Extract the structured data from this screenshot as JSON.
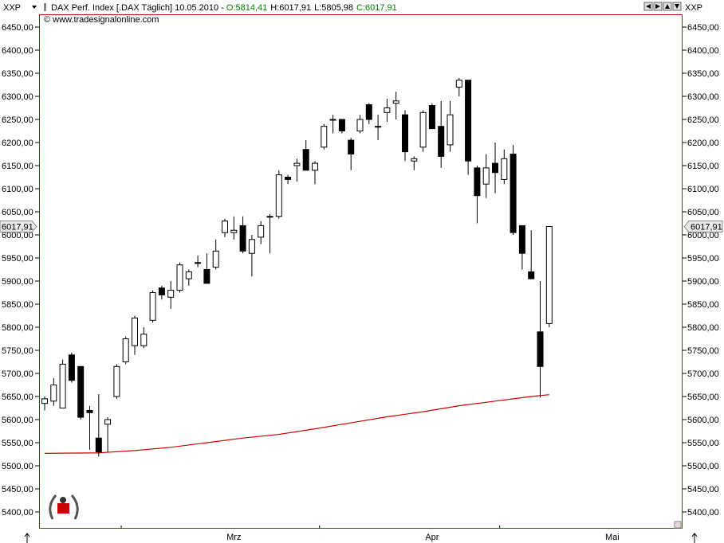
{
  "header": {
    "symbol_left": "XXP",
    "symbol_right": "XXP",
    "instrument": "DAX Perf. Index [.DAX  Täglich] 10.05.2010 - ",
    "open": "O:5814,41",
    "high": "H:6017,91",
    "low": "L:5805,98",
    "close": "C:6017,91",
    "copyright": "© www.tradesignalonline.com"
  },
  "last_price_label": "6017,91",
  "colors": {
    "up_fill": "#ffffff",
    "down_fill": "#000000",
    "moving_average": "#cc0000",
    "frame": "#cc0000",
    "header_green": "#008000"
  },
  "chart_data": {
    "type": "candlestick",
    "ylim": [
      5370,
      6480
    ],
    "y_ticks": [
      5400,
      5450,
      5500,
      5550,
      5600,
      5650,
      5700,
      5750,
      5800,
      5850,
      5900,
      5950,
      6000,
      6050,
      6100,
      6150,
      6200,
      6250,
      6300,
      6350,
      6400,
      6450
    ],
    "y_tick_labels": [
      "5400,00",
      "5450,00",
      "5500,00",
      "5550,00",
      "5600,00",
      "5650,00",
      "5700,00",
      "5750,00",
      "5800,00",
      "5850,00",
      "5900,00",
      "5950,00",
      "6000,00",
      "6050,00",
      "6100,00",
      "6150,00",
      "6200,00",
      "6250,00",
      "6300,00",
      "6350,00",
      "6400,00",
      "6450,00"
    ],
    "x_labels": [
      {
        "label": "Mrz",
        "index": 21
      },
      {
        "label": "Apr",
        "index": 43
      },
      {
        "label": "Mai",
        "index": 63
      }
    ],
    "x_month_ticks": [
      8,
      30,
      50
    ],
    "candles": [
      {
        "o": 5635,
        "h": 5650,
        "l": 5620,
        "c": 5645
      },
      {
        "o": 5640,
        "h": 5690,
        "l": 5630,
        "c": 5675
      },
      {
        "o": 5625,
        "h": 5730,
        "l": 5625,
        "c": 5720
      },
      {
        "o": 5740,
        "h": 5745,
        "l": 5680,
        "c": 5685
      },
      {
        "o": 5715,
        "h": 5715,
        "l": 5600,
        "c": 5605
      },
      {
        "o": 5620,
        "h": 5630,
        "l": 5535,
        "c": 5615
      },
      {
        "o": 5560,
        "h": 5655,
        "l": 5520,
        "c": 5530
      },
      {
        "o": 5590,
        "h": 5605,
        "l": 5530,
        "c": 5600
      },
      {
        "o": 5650,
        "h": 5720,
        "l": 5645,
        "c": 5715
      },
      {
        "o": 5725,
        "h": 5780,
        "l": 5720,
        "c": 5775
      },
      {
        "o": 5760,
        "h": 5825,
        "l": 5740,
        "c": 5820
      },
      {
        "o": 5760,
        "h": 5800,
        "l": 5755,
        "c": 5785
      },
      {
        "o": 5815,
        "h": 5880,
        "l": 5810,
        "c": 5875
      },
      {
        "o": 5885,
        "h": 5890,
        "l": 5860,
        "c": 5870
      },
      {
        "o": 5865,
        "h": 5900,
        "l": 5840,
        "c": 5880
      },
      {
        "o": 5880,
        "h": 5940,
        "l": 5875,
        "c": 5935
      },
      {
        "o": 5905,
        "h": 5925,
        "l": 5890,
        "c": 5920
      },
      {
        "o": 5940,
        "h": 5955,
        "l": 5930,
        "c": 5940
      },
      {
        "o": 5925,
        "h": 5960,
        "l": 5895,
        "c": 5895
      },
      {
        "o": 5930,
        "h": 5990,
        "l": 5925,
        "c": 5965
      },
      {
        "o": 6005,
        "h": 6035,
        "l": 5995,
        "c": 6030
      },
      {
        "o": 6005,
        "h": 6040,
        "l": 5990,
        "c": 6010
      },
      {
        "o": 6020,
        "h": 6040,
        "l": 5960,
        "c": 5965
      },
      {
        "o": 5960,
        "h": 6000,
        "l": 5910,
        "c": 5990
      },
      {
        "o": 5995,
        "h": 6030,
        "l": 5980,
        "c": 6020
      },
      {
        "o": 6040,
        "h": 6045,
        "l": 5960,
        "c": 6040
      },
      {
        "o": 6040,
        "h": 6140,
        "l": 6035,
        "c": 6130
      },
      {
        "o": 6125,
        "h": 6130,
        "l": 6110,
        "c": 6120
      },
      {
        "o": 6150,
        "h": 6165,
        "l": 6115,
        "c": 6155
      },
      {
        "o": 6185,
        "h": 6205,
        "l": 6140,
        "c": 6140
      },
      {
        "o": 6140,
        "h": 6160,
        "l": 6110,
        "c": 6155
      },
      {
        "o": 6190,
        "h": 6240,
        "l": 6185,
        "c": 6235
      },
      {
        "o": 6250,
        "h": 6260,
        "l": 6220,
        "c": 6250
      },
      {
        "o": 6250,
        "h": 6250,
        "l": 6220,
        "c": 6225
      },
      {
        "o": 6205,
        "h": 6210,
        "l": 6140,
        "c": 6175
      },
      {
        "o": 6225,
        "h": 6260,
        "l": 6220,
        "c": 6250
      },
      {
        "o": 6282,
        "h": 6285,
        "l": 6240,
        "c": 6250
      },
      {
        "o": 6235,
        "h": 6260,
        "l": 6205,
        "c": 6235
      },
      {
        "o": 6265,
        "h": 6295,
        "l": 6245,
        "c": 6275
      },
      {
        "o": 6285,
        "h": 6310,
        "l": 6250,
        "c": 6290
      },
      {
        "o": 6260,
        "h": 6270,
        "l": 6160,
        "c": 6180
      },
      {
        "o": 6160,
        "h": 6170,
        "l": 6140,
        "c": 6165
      },
      {
        "o": 6190,
        "h": 6270,
        "l": 6180,
        "c": 6265
      },
      {
        "o": 6280,
        "h": 6285,
        "l": 6230,
        "c": 6230
      },
      {
        "o": 6235,
        "h": 6290,
        "l": 6145,
        "c": 6170
      },
      {
        "o": 6195,
        "h": 6290,
        "l": 6180,
        "c": 6260
      },
      {
        "o": 6320,
        "h": 6340,
        "l": 6300,
        "c": 6335
      },
      {
        "o": 6335,
        "h": 6335,
        "l": 6130,
        "c": 6160
      },
      {
        "o": 6145,
        "h": 6150,
        "l": 6025,
        "c": 6085
      },
      {
        "o": 6110,
        "h": 6175,
        "l": 6080,
        "c": 6145
      },
      {
        "o": 6155,
        "h": 6200,
        "l": 6090,
        "c": 6135
      },
      {
        "o": 6120,
        "h": 6185,
        "l": 6110,
        "c": 6165
      },
      {
        "o": 6175,
        "h": 6195,
        "l": 6000,
        "c": 6005
      },
      {
        "o": 6020,
        "h": 6020,
        "l": 5925,
        "c": 5960
      },
      {
        "o": 5920,
        "h": 6010,
        "l": 5905,
        "c": 5905
      },
      {
        "o": 5790,
        "h": 5900,
        "l": 5648,
        "c": 5715
      },
      {
        "o": 5808,
        "h": 6018,
        "l": 5800,
        "c": 6018
      }
    ],
    "moving_average": [
      {
        "i": 0,
        "v": 5527
      },
      {
        "i": 6,
        "v": 5528
      },
      {
        "i": 10,
        "v": 5533
      },
      {
        "i": 14,
        "v": 5540
      },
      {
        "i": 18,
        "v": 5550
      },
      {
        "i": 22,
        "v": 5560
      },
      {
        "i": 26,
        "v": 5568
      },
      {
        "i": 30,
        "v": 5580
      },
      {
        "i": 34,
        "v": 5593
      },
      {
        "i": 38,
        "v": 5606
      },
      {
        "i": 42,
        "v": 5617
      },
      {
        "i": 46,
        "v": 5630
      },
      {
        "i": 50,
        "v": 5640
      },
      {
        "i": 54,
        "v": 5650
      },
      {
        "i": 56,
        "v": 5654
      }
    ]
  }
}
